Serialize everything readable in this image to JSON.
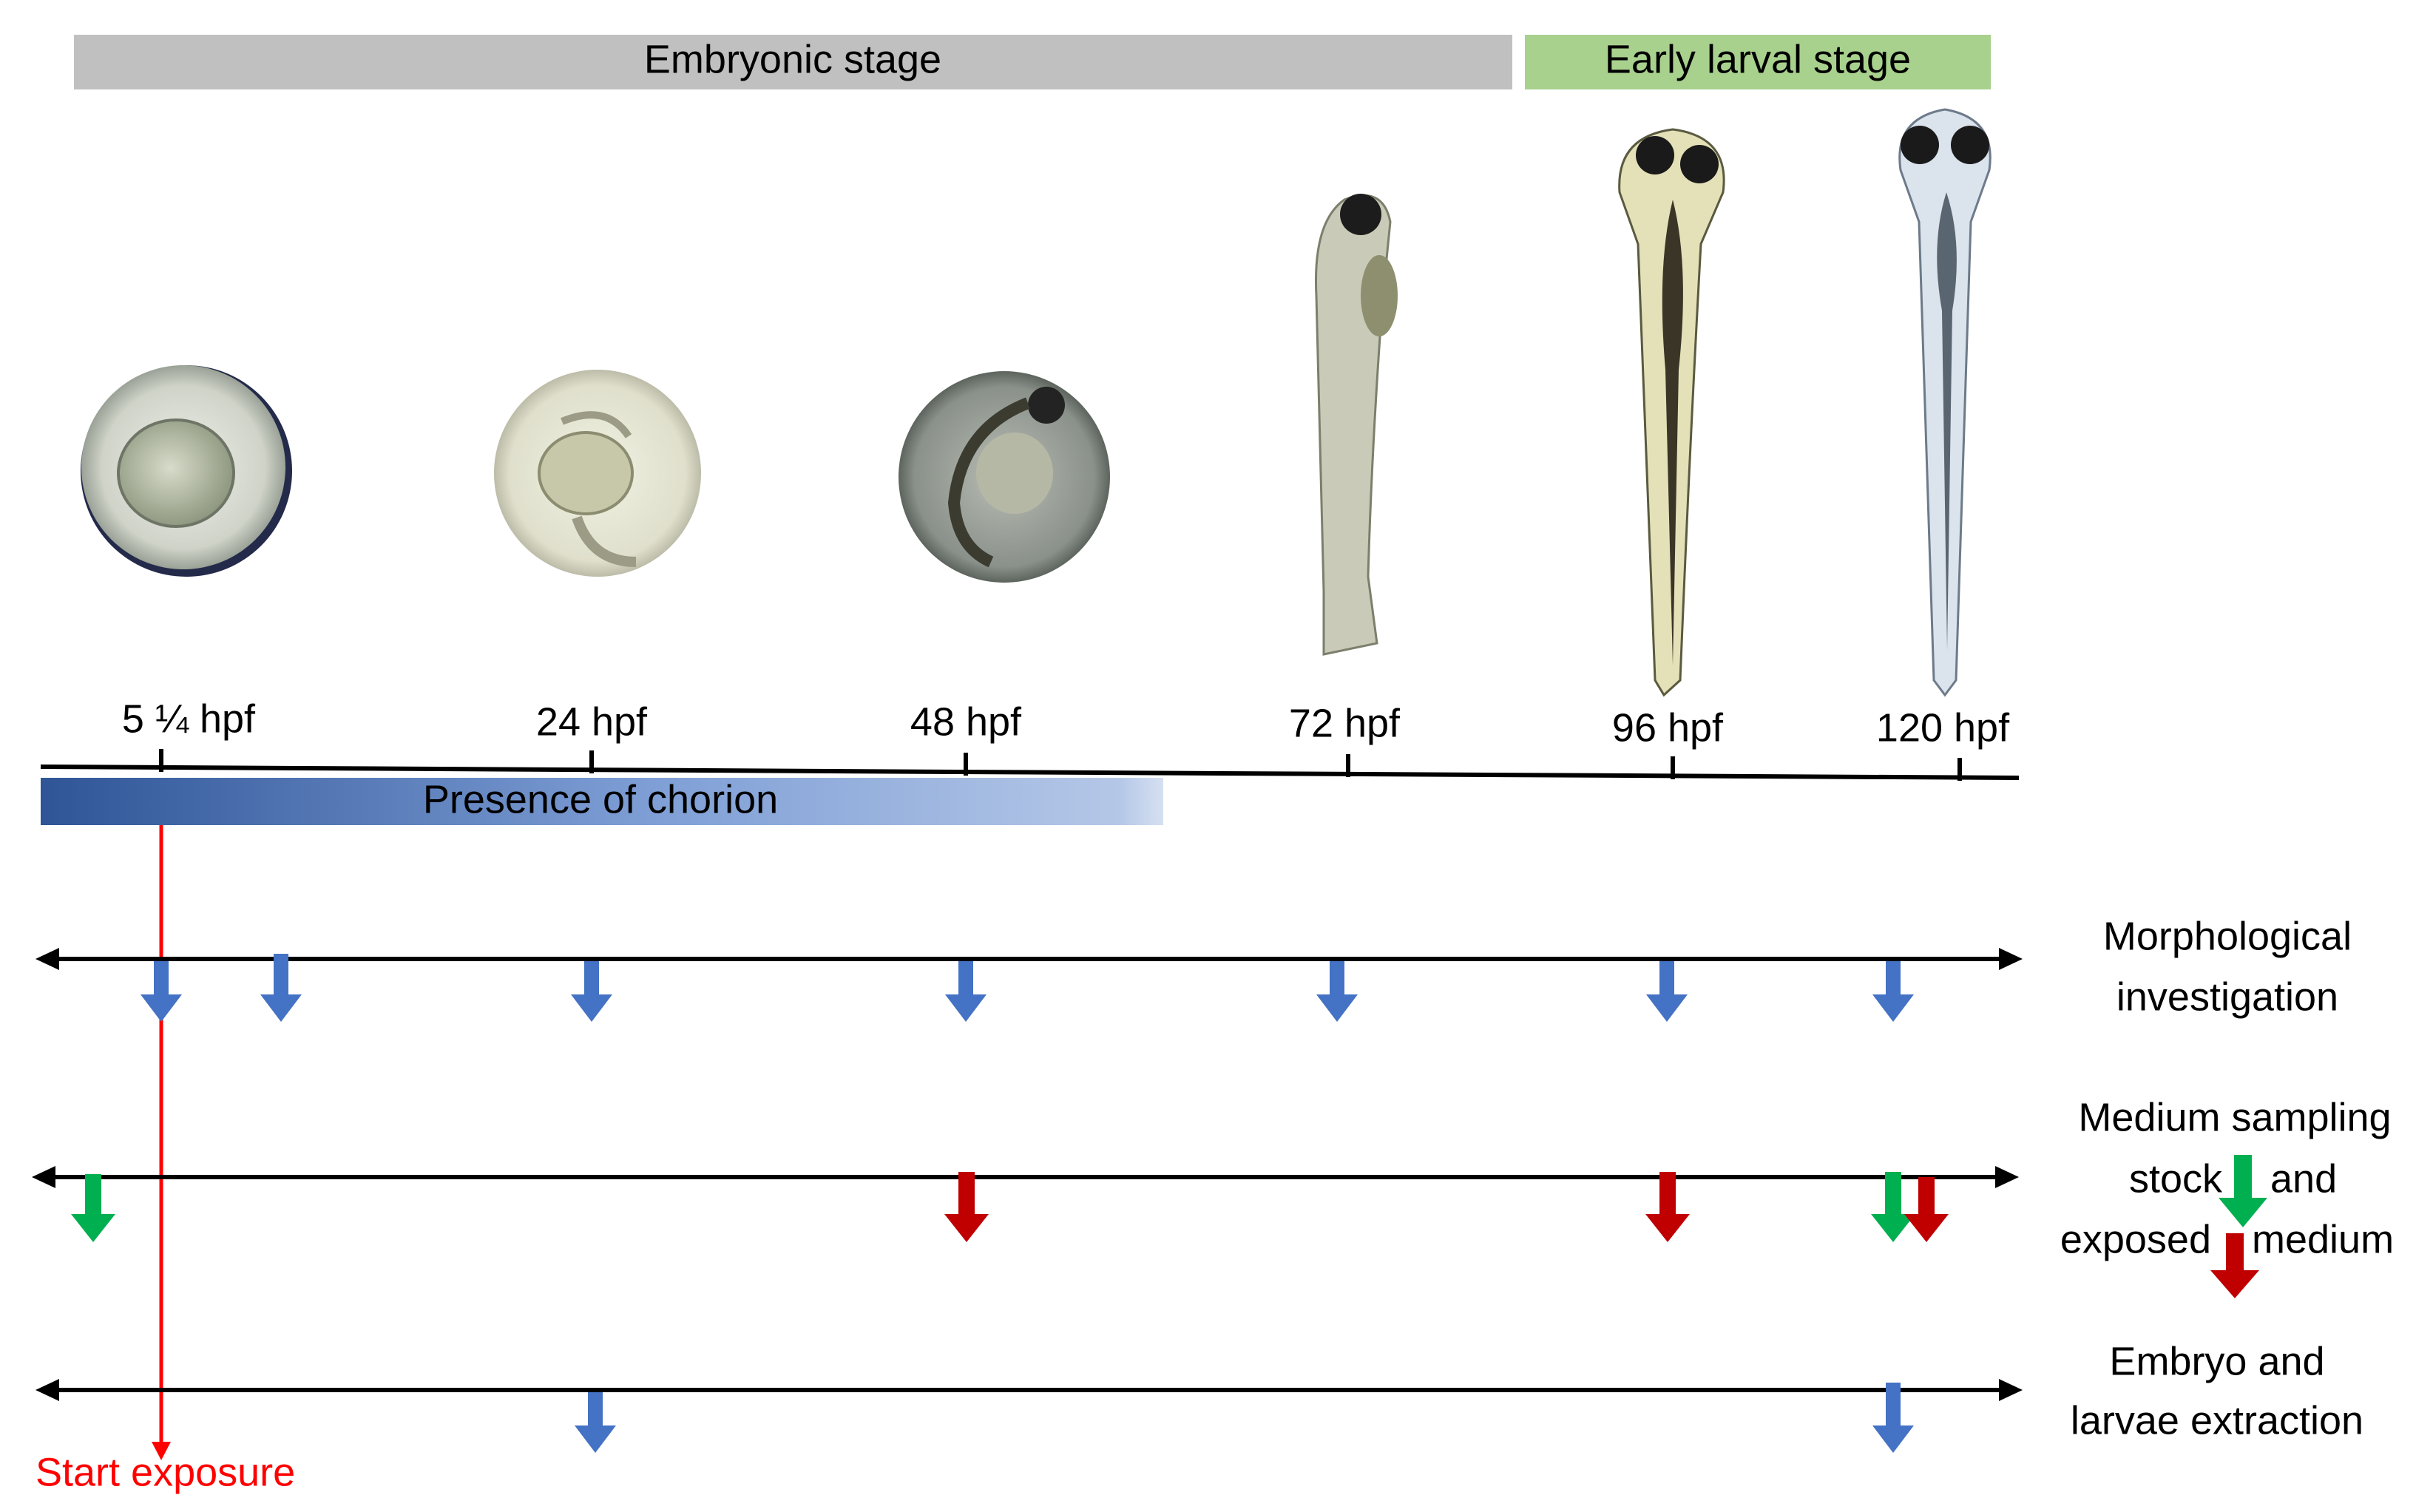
{
  "stage_bars": {
    "embryonic": "Embryonic stage",
    "early_larval": "Early larval stage"
  },
  "colors": {
    "embryonic_bar": "#c0c0c0",
    "larval_bar": "#a9d18e",
    "chorion_dark": "#2f5597",
    "chorion_light": "#b4c7e7",
    "blue_arrow": "#4472c4",
    "green_arrow": "#00b050",
    "red_arrow": "#c00000",
    "start_line": "#ff0000"
  },
  "specimen_images": [
    {
      "name": "embryo-5hpf-image"
    },
    {
      "name": "embryo-24hpf-image"
    },
    {
      "name": "embryo-48hpf-image"
    },
    {
      "name": "larva-72hpf-image"
    },
    {
      "name": "larva-96hpf-image"
    },
    {
      "name": "larva-120hpf-image"
    }
  ],
  "timeline": {
    "ticks": [
      "5 ¼ hpf",
      "24 hpf",
      "48 hpf",
      "72 hpf",
      "96 hpf",
      "120 hpf"
    ],
    "chorion_label": "Presence of chorion",
    "start_label": "Start exposure"
  },
  "tracks": {
    "morphological": {
      "line1": "Morphological",
      "line2": "investigation"
    },
    "medium": {
      "line1": "Medium sampling",
      "stock": "stock",
      "and": "and",
      "exposed": "exposed",
      "medium": "medium"
    },
    "extraction": {
      "line1": "Embryo and",
      "line2": "larvae extraction"
    }
  }
}
